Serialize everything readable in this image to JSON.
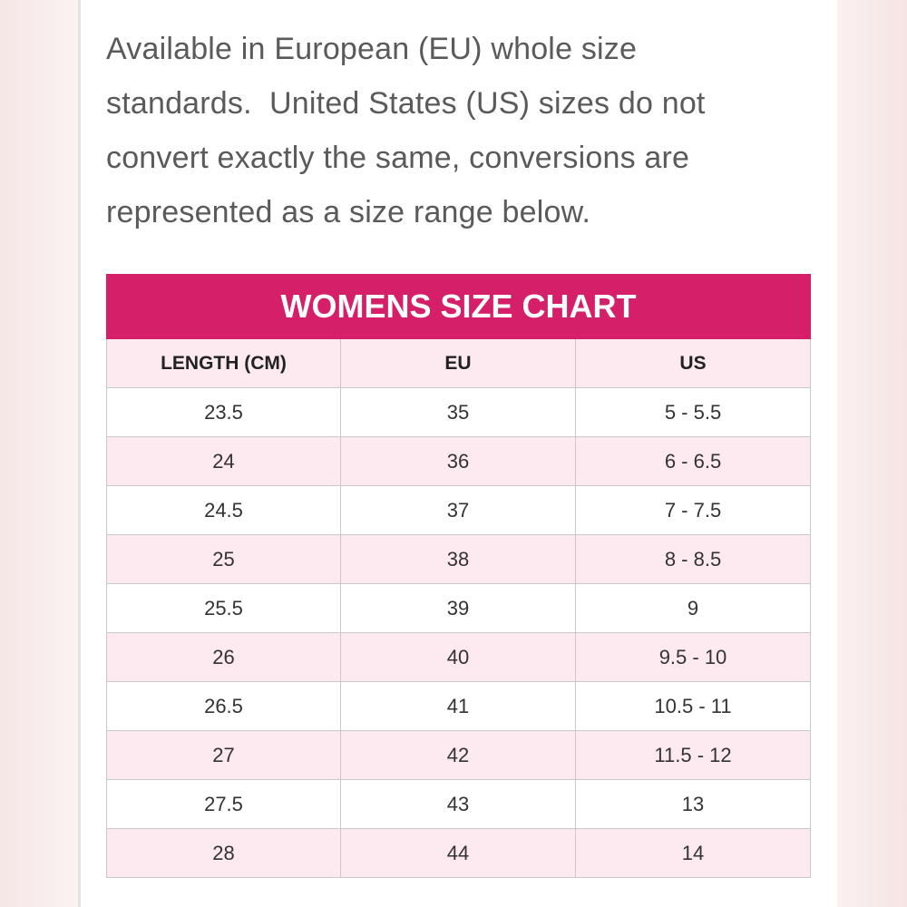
{
  "intro": [
    "Available in European (EU) whole size",
    "standards.  United States (US) sizes do not",
    "convert exactly the same, conversions are",
    "represented as a size range below."
  ],
  "table": {
    "title": "WOMENS SIZE CHART",
    "header": [
      "LENGTH (CM)",
      "EU",
      "US"
    ],
    "rows": [
      [
        "23.5",
        "35",
        "5 - 5.5"
      ],
      [
        "24",
        "36",
        "6 - 6.5"
      ],
      [
        "24.5",
        "37",
        "7 - 7.5"
      ],
      [
        "25",
        "38",
        "8 - 8.5"
      ],
      [
        "25.5",
        "39",
        "9"
      ],
      [
        "26",
        "40",
        "9.5 - 10"
      ],
      [
        "26.5",
        "41",
        "10.5 - 11"
      ],
      [
        "27",
        "42",
        "11.5 - 12"
      ],
      [
        "27.5",
        "43",
        "13"
      ],
      [
        "28",
        "44",
        "14"
      ]
    ]
  }
}
